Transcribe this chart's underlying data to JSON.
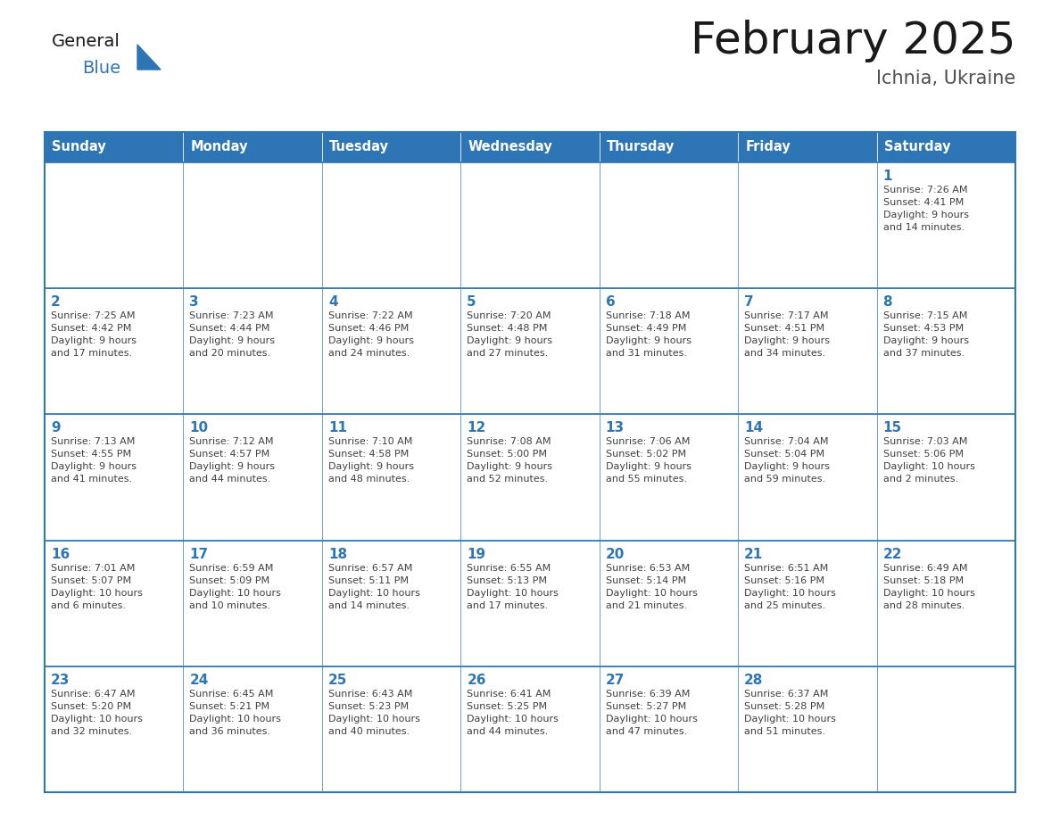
{
  "title": "February 2025",
  "subtitle": "Ichnia, Ukraine",
  "days_of_week": [
    "Sunday",
    "Monday",
    "Tuesday",
    "Wednesday",
    "Thursday",
    "Friday",
    "Saturday"
  ],
  "header_bg": "#2E75B6",
  "header_text": "#FFFFFF",
  "cell_bg_white": "#FFFFFF",
  "cell_bg_gray": "#F0F0F0",
  "border_color": "#2E75B6",
  "border_color_dark": "#1F4E79",
  "day_number_color": "#2E75B6",
  "info_text_color": "#404040",
  "title_color": "#1a1a1a",
  "subtitle_color": "#505050",
  "logo_general_color": "#1a1a1a",
  "logo_blue_color": "#2E75B6",
  "logo_triangle_color": "#2E75B6",
  "weeks": [
    [
      {
        "day": null,
        "info": null
      },
      {
        "day": null,
        "info": null
      },
      {
        "day": null,
        "info": null
      },
      {
        "day": null,
        "info": null
      },
      {
        "day": null,
        "info": null
      },
      {
        "day": null,
        "info": null
      },
      {
        "day": 1,
        "info": "Sunrise: 7:26 AM\nSunset: 4:41 PM\nDaylight: 9 hours\nand 14 minutes."
      }
    ],
    [
      {
        "day": 2,
        "info": "Sunrise: 7:25 AM\nSunset: 4:42 PM\nDaylight: 9 hours\nand 17 minutes."
      },
      {
        "day": 3,
        "info": "Sunrise: 7:23 AM\nSunset: 4:44 PM\nDaylight: 9 hours\nand 20 minutes."
      },
      {
        "day": 4,
        "info": "Sunrise: 7:22 AM\nSunset: 4:46 PM\nDaylight: 9 hours\nand 24 minutes."
      },
      {
        "day": 5,
        "info": "Sunrise: 7:20 AM\nSunset: 4:48 PM\nDaylight: 9 hours\nand 27 minutes."
      },
      {
        "day": 6,
        "info": "Sunrise: 7:18 AM\nSunset: 4:49 PM\nDaylight: 9 hours\nand 31 minutes."
      },
      {
        "day": 7,
        "info": "Sunrise: 7:17 AM\nSunset: 4:51 PM\nDaylight: 9 hours\nand 34 minutes."
      },
      {
        "day": 8,
        "info": "Sunrise: 7:15 AM\nSunset: 4:53 PM\nDaylight: 9 hours\nand 37 minutes."
      }
    ],
    [
      {
        "day": 9,
        "info": "Sunrise: 7:13 AM\nSunset: 4:55 PM\nDaylight: 9 hours\nand 41 minutes."
      },
      {
        "day": 10,
        "info": "Sunrise: 7:12 AM\nSunset: 4:57 PM\nDaylight: 9 hours\nand 44 minutes."
      },
      {
        "day": 11,
        "info": "Sunrise: 7:10 AM\nSunset: 4:58 PM\nDaylight: 9 hours\nand 48 minutes."
      },
      {
        "day": 12,
        "info": "Sunrise: 7:08 AM\nSunset: 5:00 PM\nDaylight: 9 hours\nand 52 minutes."
      },
      {
        "day": 13,
        "info": "Sunrise: 7:06 AM\nSunset: 5:02 PM\nDaylight: 9 hours\nand 55 minutes."
      },
      {
        "day": 14,
        "info": "Sunrise: 7:04 AM\nSunset: 5:04 PM\nDaylight: 9 hours\nand 59 minutes."
      },
      {
        "day": 15,
        "info": "Sunrise: 7:03 AM\nSunset: 5:06 PM\nDaylight: 10 hours\nand 2 minutes."
      }
    ],
    [
      {
        "day": 16,
        "info": "Sunrise: 7:01 AM\nSunset: 5:07 PM\nDaylight: 10 hours\nand 6 minutes."
      },
      {
        "day": 17,
        "info": "Sunrise: 6:59 AM\nSunset: 5:09 PM\nDaylight: 10 hours\nand 10 minutes."
      },
      {
        "day": 18,
        "info": "Sunrise: 6:57 AM\nSunset: 5:11 PM\nDaylight: 10 hours\nand 14 minutes."
      },
      {
        "day": 19,
        "info": "Sunrise: 6:55 AM\nSunset: 5:13 PM\nDaylight: 10 hours\nand 17 minutes."
      },
      {
        "day": 20,
        "info": "Sunrise: 6:53 AM\nSunset: 5:14 PM\nDaylight: 10 hours\nand 21 minutes."
      },
      {
        "day": 21,
        "info": "Sunrise: 6:51 AM\nSunset: 5:16 PM\nDaylight: 10 hours\nand 25 minutes."
      },
      {
        "day": 22,
        "info": "Sunrise: 6:49 AM\nSunset: 5:18 PM\nDaylight: 10 hours\nand 28 minutes."
      }
    ],
    [
      {
        "day": 23,
        "info": "Sunrise: 6:47 AM\nSunset: 5:20 PM\nDaylight: 10 hours\nand 32 minutes."
      },
      {
        "day": 24,
        "info": "Sunrise: 6:45 AM\nSunset: 5:21 PM\nDaylight: 10 hours\nand 36 minutes."
      },
      {
        "day": 25,
        "info": "Sunrise: 6:43 AM\nSunset: 5:23 PM\nDaylight: 10 hours\nand 40 minutes."
      },
      {
        "day": 26,
        "info": "Sunrise: 6:41 AM\nSunset: 5:25 PM\nDaylight: 10 hours\nand 44 minutes."
      },
      {
        "day": 27,
        "info": "Sunrise: 6:39 AM\nSunset: 5:27 PM\nDaylight: 10 hours\nand 47 minutes."
      },
      {
        "day": 28,
        "info": "Sunrise: 6:37 AM\nSunset: 5:28 PM\nDaylight: 10 hours\nand 51 minutes."
      },
      {
        "day": null,
        "info": null
      }
    ]
  ]
}
